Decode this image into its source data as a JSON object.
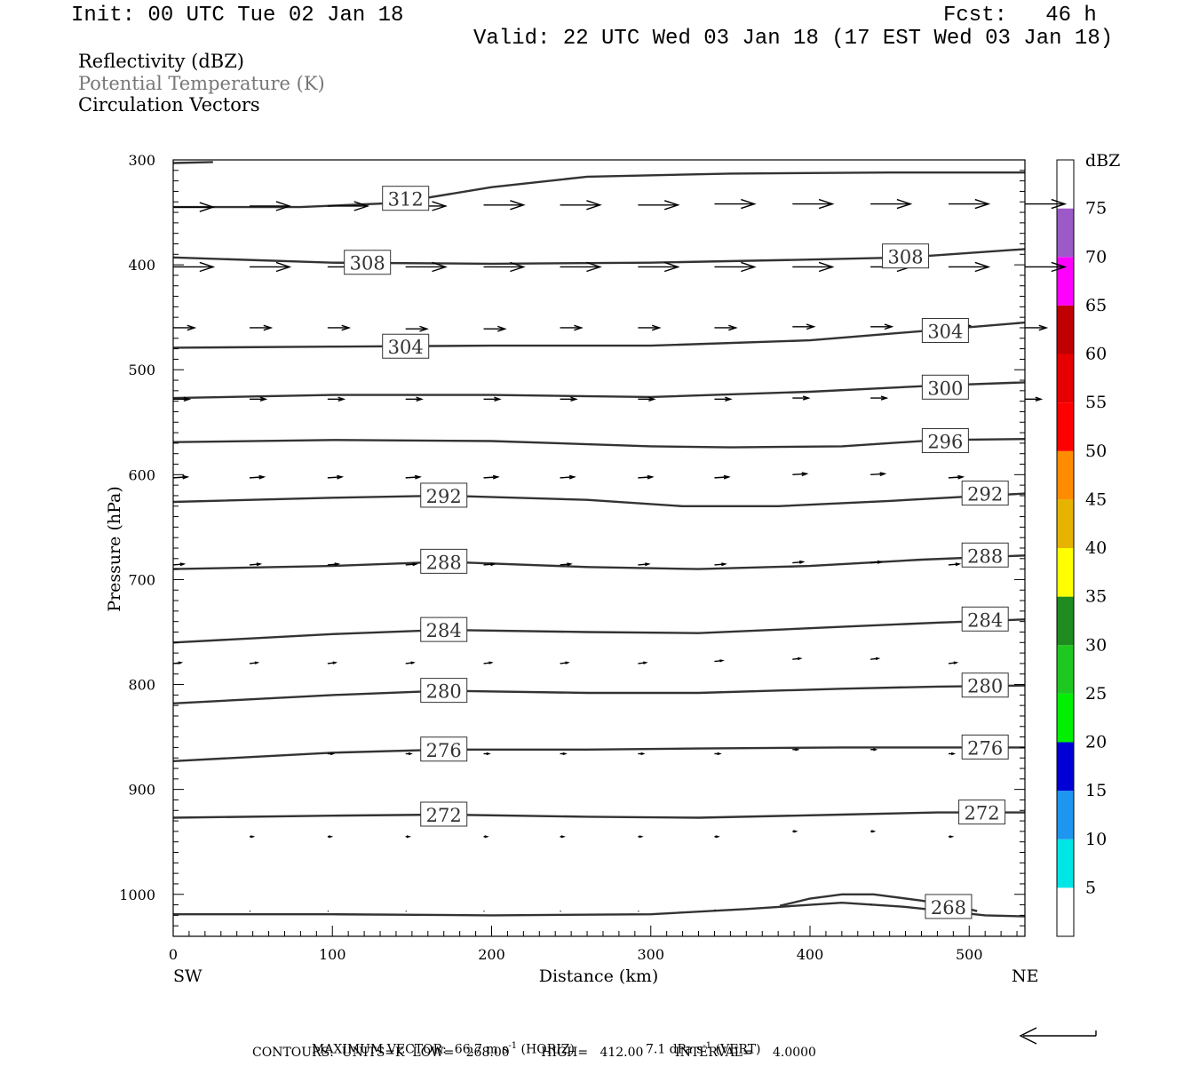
{
  "header": {
    "init": "Init: 00 UTC Tue 02 Jan 18",
    "fcst": "Fcst:   46 h",
    "valid": "Valid: 22 UTC Wed 03 Jan 18 (17 EST Wed 03 Jan 18)"
  },
  "fields": [
    {
      "label": "Reflectivity (dBZ)",
      "color": "#000000"
    },
    {
      "label": "Potential Temperature (K)",
      "color": "#777777"
    },
    {
      "label": "Circulation Vectors",
      "color": "#000000"
    }
  ],
  "chart_data": {
    "type": "cross-section",
    "xlabel": "Distance (km)",
    "ylabel": "Pressure (hPa)",
    "xlim": [
      0,
      535
    ],
    "ylim": [
      1040,
      300
    ],
    "x_ticks": [
      "0",
      "100",
      "200",
      "300",
      "400",
      "500"
    ],
    "y_ticks": [
      "300",
      "400",
      "500",
      "600",
      "700",
      "800",
      "900",
      "1000"
    ],
    "x_endpoint_labels": {
      "left": "SW",
      "right": "NE"
    },
    "theta_contours": [
      {
        "label": "312",
        "points": [
          [
            0,
            303
          ],
          [
            25,
            302
          ]
        ]
      },
      {
        "label": "312",
        "points": [
          [
            0,
            345
          ],
          [
            80,
            345
          ],
          [
            140,
            341
          ],
          [
            200,
            326
          ],
          [
            260,
            316
          ],
          [
            350,
            313
          ],
          [
            450,
            312
          ],
          [
            535,
            312
          ]
        ],
        "labels_at": [
          [
            146,
            337
          ]
        ]
      },
      {
        "label": "308",
        "points": [
          [
            0,
            393
          ],
          [
            100,
            398
          ],
          [
            200,
            399
          ],
          [
            300,
            398
          ],
          [
            400,
            395
          ],
          [
            460,
            393
          ],
          [
            535,
            385
          ]
        ],
        "labels_at": [
          [
            122,
            398
          ],
          [
            460,
            392
          ]
        ]
      },
      {
        "label": "304",
        "points": [
          [
            0,
            479
          ],
          [
            100,
            478
          ],
          [
            200,
            477
          ],
          [
            300,
            477
          ],
          [
            400,
            472
          ],
          [
            480,
            462
          ],
          [
            535,
            455
          ]
        ],
        "labels_at": [
          [
            146,
            478
          ],
          [
            485,
            463
          ]
        ]
      },
      {
        "label": "300",
        "points": [
          [
            0,
            527
          ],
          [
            100,
            524
          ],
          [
            200,
            524
          ],
          [
            300,
            526
          ],
          [
            400,
            521
          ],
          [
            480,
            515
          ],
          [
            535,
            512
          ]
        ],
        "labels_at": [
          [
            485,
            517
          ]
        ]
      },
      {
        "label": "296",
        "points": [
          [
            0,
            569
          ],
          [
            100,
            567
          ],
          [
            200,
            568
          ],
          [
            300,
            573
          ],
          [
            350,
            574
          ],
          [
            420,
            573
          ],
          [
            480,
            567
          ],
          [
            535,
            566
          ]
        ],
        "labels_at": [
          [
            485,
            568
          ]
        ]
      },
      {
        "label": "292",
        "points": [
          [
            0,
            626
          ],
          [
            100,
            622
          ],
          [
            170,
            620
          ],
          [
            260,
            624
          ],
          [
            320,
            630
          ],
          [
            380,
            630
          ],
          [
            450,
            625
          ],
          [
            510,
            620
          ],
          [
            535,
            618
          ]
        ],
        "labels_at": [
          [
            170,
            620
          ],
          [
            510,
            618
          ]
        ]
      },
      {
        "label": "288",
        "points": [
          [
            0,
            690
          ],
          [
            100,
            687
          ],
          [
            170,
            683
          ],
          [
            260,
            688
          ],
          [
            330,
            690
          ],
          [
            400,
            687
          ],
          [
            470,
            681
          ],
          [
            535,
            677
          ]
        ],
        "labels_at": [
          [
            170,
            683
          ],
          [
            510,
            677
          ]
        ]
      },
      {
        "label": "284",
        "points": [
          [
            0,
            760
          ],
          [
            100,
            752
          ],
          [
            170,
            748
          ],
          [
            260,
            750
          ],
          [
            330,
            751
          ],
          [
            420,
            745
          ],
          [
            480,
            741
          ],
          [
            535,
            738
          ]
        ],
        "labels_at": [
          [
            170,
            748
          ],
          [
            510,
            738
          ]
        ]
      },
      {
        "label": "280",
        "points": [
          [
            0,
            818
          ],
          [
            100,
            810
          ],
          [
            170,
            806
          ],
          [
            260,
            808
          ],
          [
            330,
            808
          ],
          [
            420,
            804
          ],
          [
            480,
            802
          ],
          [
            535,
            801
          ]
        ],
        "labels_at": [
          [
            170,
            806
          ],
          [
            510,
            801
          ]
        ]
      },
      {
        "label": "276",
        "points": [
          [
            0,
            873
          ],
          [
            100,
            865
          ],
          [
            170,
            862
          ],
          [
            260,
            862
          ],
          [
            330,
            861
          ],
          [
            420,
            860
          ],
          [
            480,
            860
          ],
          [
            535,
            860
          ]
        ],
        "labels_at": [
          [
            170,
            862
          ],
          [
            510,
            860
          ]
        ]
      },
      {
        "label": "272",
        "points": [
          [
            0,
            927
          ],
          [
            100,
            925
          ],
          [
            170,
            924
          ],
          [
            260,
            926
          ],
          [
            330,
            927
          ],
          [
            420,
            924
          ],
          [
            480,
            922
          ],
          [
            535,
            922
          ]
        ],
        "labels_at": [
          [
            170,
            924
          ],
          [
            508,
            922
          ]
        ]
      },
      {
        "label": "268",
        "points": [
          [
            0,
            1019
          ],
          [
            100,
            1019
          ],
          [
            200,
            1020
          ],
          [
            300,
            1019
          ],
          [
            360,
            1014
          ],
          [
            420,
            1008
          ],
          [
            460,
            1012
          ],
          [
            510,
            1020
          ],
          [
            535,
            1021
          ]
        ],
        "labels_at": [
          [
            487,
            1012
          ]
        ]
      },
      {
        "label": "268",
        "points": [
          [
            381,
            1011
          ],
          [
            400,
            1004
          ],
          [
            420,
            1000
          ],
          [
            440,
            1000
          ],
          [
            470,
            1006
          ],
          [
            500,
            1014
          ],
          [
            505,
            1016
          ]
        ]
      }
    ],
    "vectors": [
      {
        "p": 345,
        "rows": [
          [
            0,
            345
          ],
          [
            48,
            344
          ],
          [
            97,
            344
          ],
          [
            146,
            344
          ],
          [
            195,
            343
          ],
          [
            243,
            343
          ],
          [
            292,
            343
          ],
          [
            340,
            342
          ],
          [
            389,
            342
          ],
          [
            438,
            342
          ],
          [
            487,
            342
          ],
          [
            535,
            342
          ]
        ],
        "dx": 45,
        "dy": 0
      },
      {
        "p": 400,
        "rows": [
          [
            0,
            402
          ],
          [
            48,
            402
          ],
          [
            97,
            402
          ],
          [
            146,
            402
          ],
          [
            195,
            402
          ],
          [
            243,
            402
          ],
          [
            292,
            402
          ],
          [
            340,
            402
          ],
          [
            389,
            402
          ],
          [
            438,
            402
          ],
          [
            487,
            402
          ],
          [
            535,
            402
          ]
        ],
        "dx": 45,
        "dy": 0
      },
      {
        "p": 460,
        "rows": [
          [
            0,
            460
          ],
          [
            48,
            460
          ],
          [
            97,
            460
          ],
          [
            146,
            461
          ],
          [
            195,
            461
          ],
          [
            243,
            460
          ],
          [
            292,
            460
          ],
          [
            340,
            460
          ],
          [
            389,
            459
          ],
          [
            438,
            459
          ],
          [
            487,
            458
          ],
          [
            535,
            460
          ]
        ],
        "dx": 24,
        "dy": 0
      },
      {
        "p": 528,
        "rows": [
          [
            0,
            528
          ],
          [
            48,
            528
          ],
          [
            97,
            528
          ],
          [
            146,
            528
          ],
          [
            195,
            528
          ],
          [
            243,
            528
          ],
          [
            292,
            528
          ],
          [
            340,
            528
          ],
          [
            389,
            527
          ],
          [
            438,
            527
          ],
          [
            487,
            526
          ],
          [
            535,
            528
          ]
        ],
        "dx": 18,
        "dy": 0
      },
      {
        "p": 602,
        "rows": [
          [
            0,
            603
          ],
          [
            48,
            603
          ],
          [
            97,
            603
          ],
          [
            146,
            603
          ],
          [
            195,
            603
          ],
          [
            243,
            603
          ],
          [
            292,
            603
          ],
          [
            340,
            603
          ],
          [
            389,
            600
          ],
          [
            438,
            600
          ],
          [
            487,
            603
          ]
        ],
        "dx": 16,
        "dy": -1
      },
      {
        "p": 685,
        "rows": [
          [
            0,
            686
          ],
          [
            48,
            686
          ],
          [
            97,
            686
          ],
          [
            146,
            686
          ],
          [
            195,
            686
          ],
          [
            243,
            686
          ],
          [
            292,
            686
          ],
          [
            340,
            686
          ],
          [
            389,
            684
          ],
          [
            438,
            684
          ],
          [
            487,
            686
          ]
        ],
        "dx": 12,
        "dy": -1
      },
      {
        "p": 780,
        "rows": [
          [
            0,
            780
          ],
          [
            48,
            780
          ],
          [
            97,
            780
          ],
          [
            146,
            780
          ],
          [
            195,
            780
          ],
          [
            243,
            780
          ],
          [
            292,
            780
          ],
          [
            340,
            778
          ],
          [
            389,
            776
          ],
          [
            438,
            776
          ],
          [
            487,
            780
          ]
        ],
        "dx": 9,
        "dy": -1
      },
      {
        "p": 866,
        "rows": [
          [
            97,
            866
          ],
          [
            146,
            866
          ],
          [
            195,
            866
          ],
          [
            243,
            866
          ],
          [
            292,
            866
          ],
          [
            340,
            866
          ],
          [
            389,
            862
          ],
          [
            438,
            862
          ],
          [
            487,
            866
          ]
        ],
        "dx": 6,
        "dy": 0
      },
      {
        "p": 945,
        "rows": [
          [
            48,
            945
          ],
          [
            97,
            945
          ],
          [
            146,
            945
          ],
          [
            195,
            945
          ],
          [
            243,
            945
          ],
          [
            292,
            945
          ],
          [
            340,
            945
          ],
          [
            389,
            940
          ],
          [
            438,
            940
          ],
          [
            487,
            945
          ]
        ],
        "dx": 4,
        "dy": 0
      },
      {
        "p": 1015,
        "rows": [
          [
            48,
            1016
          ],
          [
            97,
            1016
          ],
          [
            146,
            1016
          ],
          [
            195,
            1016
          ],
          [
            243,
            1016
          ],
          [
            292,
            1016
          ],
          [
            340,
            1015
          ],
          [
            438,
            1010
          ]
        ],
        "dx": 1,
        "dy": 0
      }
    ],
    "colorbar": {
      "unit": "dBZ",
      "levels": [
        "5",
        "10",
        "15",
        "20",
        "25",
        "30",
        "35",
        "40",
        "45",
        "50",
        "55",
        "60",
        "65",
        "70",
        "75"
      ],
      "colors": [
        "#00e6e6",
        "#1e96f0",
        "#0000d6",
        "#00f000",
        "#1ec81e",
        "#1e8c1e",
        "#ffff00",
        "#e6b400",
        "#ff8c00",
        "#ff0000",
        "#e60000",
        "#c00000",
        "#ff00ff",
        "#9b5ac8",
        "#ffffff"
      ]
    }
  },
  "footer": {
    "max_vector_label": "MAXIMUM VECTOR:",
    "max_vector_horiz": "66.7 m s",
    "horiz_unit_sup": "-1",
    "horiz_tag": "(HORIZ)",
    "max_vector_vert": "7.1 dPa s",
    "vert_unit_sup": "-1",
    "vert_tag": "(VERT)",
    "contours": "CONTOURS:  UNITS=K  LOW=   268.00        HIGH=   412.00        INTERVAL=     4.0000"
  }
}
